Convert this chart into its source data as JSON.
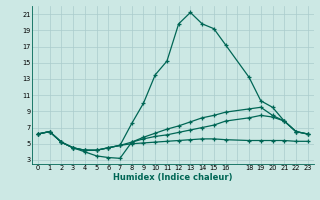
{
  "xlabel": "Humidex (Indice chaleur)",
  "background_color": "#cce8e4",
  "grid_color": "#aacccc",
  "line_color": "#006655",
  "xlim": [
    -0.5,
    23.5
  ],
  "ylim": [
    2.5,
    22
  ],
  "y_ticks": [
    3,
    5,
    7,
    9,
    11,
    13,
    15,
    17,
    19,
    21
  ],
  "curve1_x": [
    0,
    1,
    2,
    3,
    4,
    5,
    6,
    7,
    8,
    9,
    10,
    11,
    12,
    13,
    14,
    15,
    16,
    18,
    19,
    20,
    21,
    22,
    23
  ],
  "curve1_y": [
    6.2,
    6.5,
    5.2,
    4.5,
    4.2,
    4.2,
    4.5,
    4.8,
    7.5,
    10,
    13.5,
    15.2,
    19.8,
    21.2,
    19.8,
    19.2,
    17.2,
    13.2,
    10.3,
    9.5,
    7.8,
    6.5,
    6.2
  ],
  "curve2_x": [
    0,
    1,
    2,
    3,
    4,
    5,
    6,
    7,
    8,
    9,
    10,
    11,
    12,
    13,
    14,
    15,
    16,
    18,
    19,
    20,
    21,
    22,
    23
  ],
  "curve2_y": [
    6.2,
    6.5,
    5.2,
    4.5,
    4.0,
    3.5,
    3.3,
    3.2,
    5.2,
    5.8,
    6.3,
    6.8,
    7.2,
    7.7,
    8.2,
    8.5,
    8.9,
    9.3,
    9.5,
    8.5,
    7.8,
    6.5,
    6.2
  ],
  "curve3_x": [
    0,
    1,
    2,
    3,
    4,
    5,
    6,
    7,
    8,
    9,
    10,
    11,
    12,
    13,
    14,
    15,
    16,
    18,
    19,
    20,
    21,
    22,
    23
  ],
  "curve3_y": [
    6.2,
    6.5,
    5.2,
    4.5,
    4.2,
    4.2,
    4.5,
    4.8,
    5.2,
    5.6,
    5.9,
    6.1,
    6.4,
    6.7,
    7.0,
    7.3,
    7.8,
    8.2,
    8.5,
    8.3,
    7.8,
    6.5,
    6.2
  ],
  "curve4_x": [
    0,
    1,
    2,
    3,
    4,
    5,
    6,
    7,
    8,
    9,
    10,
    11,
    12,
    13,
    14,
    15,
    16,
    18,
    19,
    20,
    21,
    22,
    23
  ],
  "curve4_y": [
    6.2,
    6.5,
    5.2,
    4.5,
    4.2,
    4.2,
    4.5,
    4.8,
    5.0,
    5.1,
    5.2,
    5.3,
    5.4,
    5.5,
    5.6,
    5.6,
    5.5,
    5.4,
    5.4,
    5.4,
    5.4,
    5.3,
    5.3
  ]
}
